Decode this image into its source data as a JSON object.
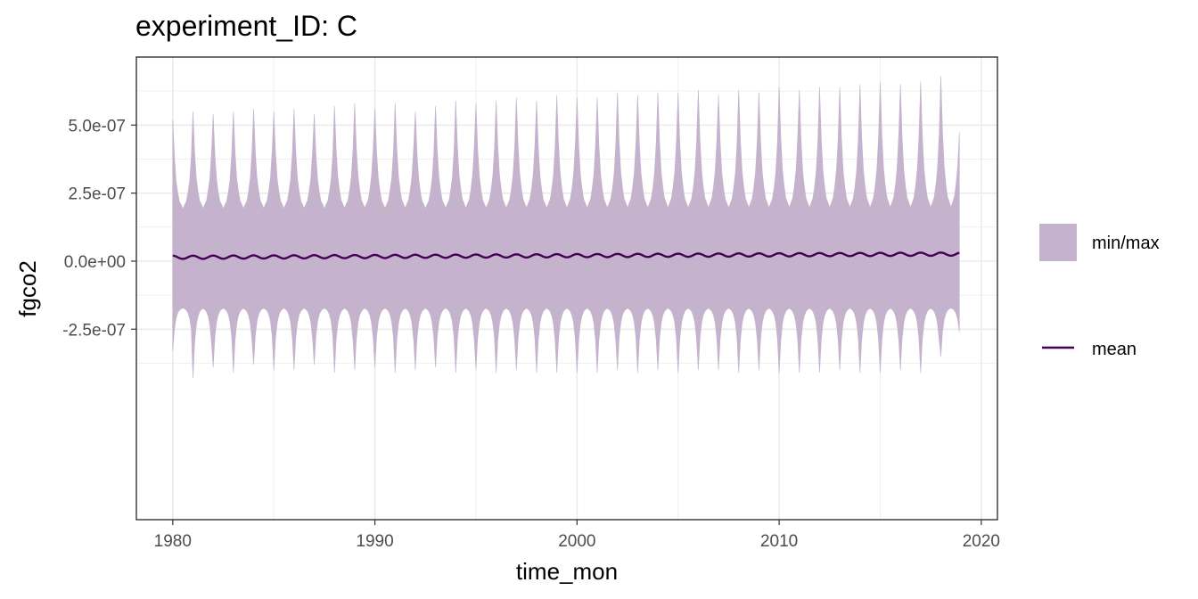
{
  "chart_data": {
    "type": "area",
    "title": "experiment_ID: C",
    "xlabel": "time_mon",
    "ylabel": "fgco2",
    "x_range": [
      1978.2,
      2020.8
    ],
    "xlim": [
      1978.2,
      2020.8
    ],
    "ylim": [
      -9.5e-07,
      7.5e-07
    ],
    "x_ticks": [
      1980,
      1990,
      2000,
      2010,
      2020
    ],
    "x_tick_labels": [
      "1980",
      "1990",
      "2000",
      "2010",
      "2020"
    ],
    "y_ticks": [
      -2.5e-07,
      0,
      2.5e-07,
      5e-07
    ],
    "y_tick_labels": [
      "-2.5e-07",
      "0.0e+00",
      "2.5e-07",
      "5.0e-07"
    ],
    "grid": true,
    "legend_position": "right",
    "time_start": 1980.0,
    "time_end": 2018.917,
    "series": [
      {
        "name": "min/max",
        "kind": "ribbon",
        "color": "#c5b3cd",
        "annual_peak_max": [
          5.2e-07,
          5.5e-07,
          5.4e-07,
          5.5e-07,
          5.6e-07,
          5.5e-07,
          5.6e-07,
          5.4e-07,
          5.7e-07,
          5.8e-07,
          5.6e-07,
          5.8e-07,
          5.5e-07,
          5.7e-07,
          5.9e-07,
          5.8e-07,
          5.9e-07,
          6e-07,
          5.9e-07,
          6.1e-07,
          6e-07,
          6e-07,
          6.2e-07,
          6.1e-07,
          6.2e-07,
          6.2e-07,
          6.3e-07,
          6.1e-07,
          6.3e-07,
          6.2e-07,
          6.4e-07,
          6.3e-07,
          6.4e-07,
          6.4e-07,
          6.5e-07,
          6.6e-07,
          6.5e-07,
          6.6e-07,
          6.8e-07
        ],
        "annual_trough_min": [
          -3.3e-07,
          -4.3e-07,
          -3.9e-07,
          -4.1e-07,
          -3.8e-07,
          -4e-07,
          -4e-07,
          -3.8e-07,
          -4.1e-07,
          -4e-07,
          -3.9e-07,
          -4.1e-07,
          -4e-07,
          -3.9e-07,
          -4.1e-07,
          -4e-07,
          -4.1e-07,
          -4e-07,
          -4.1e-07,
          -4.1e-07,
          -4.1e-07,
          -4.1e-07,
          -4e-07,
          -4.1e-07,
          -4e-07,
          -4.1e-07,
          -4e-07,
          -4e-07,
          -4.1e-07,
          -4e-07,
          -4.1e-07,
          -4.1e-07,
          -4.1e-07,
          -4e-07,
          -4.1e-07,
          -4.1e-07,
          -4e-07,
          -4.1e-07,
          -3.5e-07
        ],
        "max_baseline": 1.8e-07,
        "min_baseline": -1.7e-07
      },
      {
        "name": "mean",
        "kind": "line",
        "color": "#440154",
        "start": 1.4e-08,
        "end": 2.6e-08,
        "seasonal_amplitude": 6e-09
      }
    ]
  },
  "legend": {
    "items": [
      {
        "label": "min/max"
      },
      {
        "label": "mean"
      }
    ]
  }
}
